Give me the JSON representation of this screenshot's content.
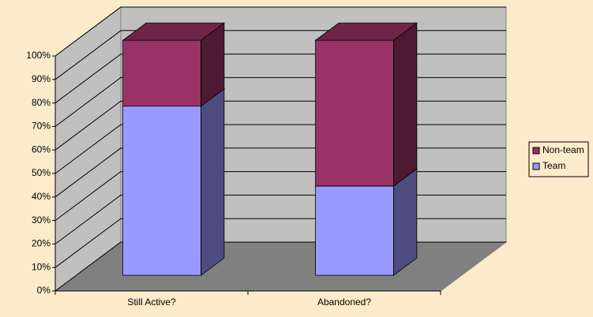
{
  "chart_data": {
    "type": "bar3d_stacked",
    "categories": [
      "Still Active?",
      "Abandoned?"
    ],
    "series": [
      {
        "name": "Team",
        "color": "#9999ff",
        "values": [
          72,
          38
        ]
      },
      {
        "name": "Non-team",
        "color": "#993366",
        "values": [
          28,
          62
        ]
      }
    ],
    "ylim": [
      0,
      100
    ],
    "yticks": [
      {
        "value": 0,
        "label": "0%"
      },
      {
        "value": 10,
        "label": "10%"
      },
      {
        "value": 20,
        "label": "20%"
      },
      {
        "value": 30,
        "label": "30%"
      },
      {
        "value": 40,
        "label": "40%"
      },
      {
        "value": 50,
        "label": "50%"
      },
      {
        "value": 60,
        "label": "60%"
      },
      {
        "value": 70,
        "label": "70%"
      },
      {
        "value": 80,
        "label": "80%"
      },
      {
        "value": 90,
        "label": "90%"
      },
      {
        "value": 100,
        "label": "100%"
      }
    ],
    "grid": true,
    "legend": "right"
  }
}
